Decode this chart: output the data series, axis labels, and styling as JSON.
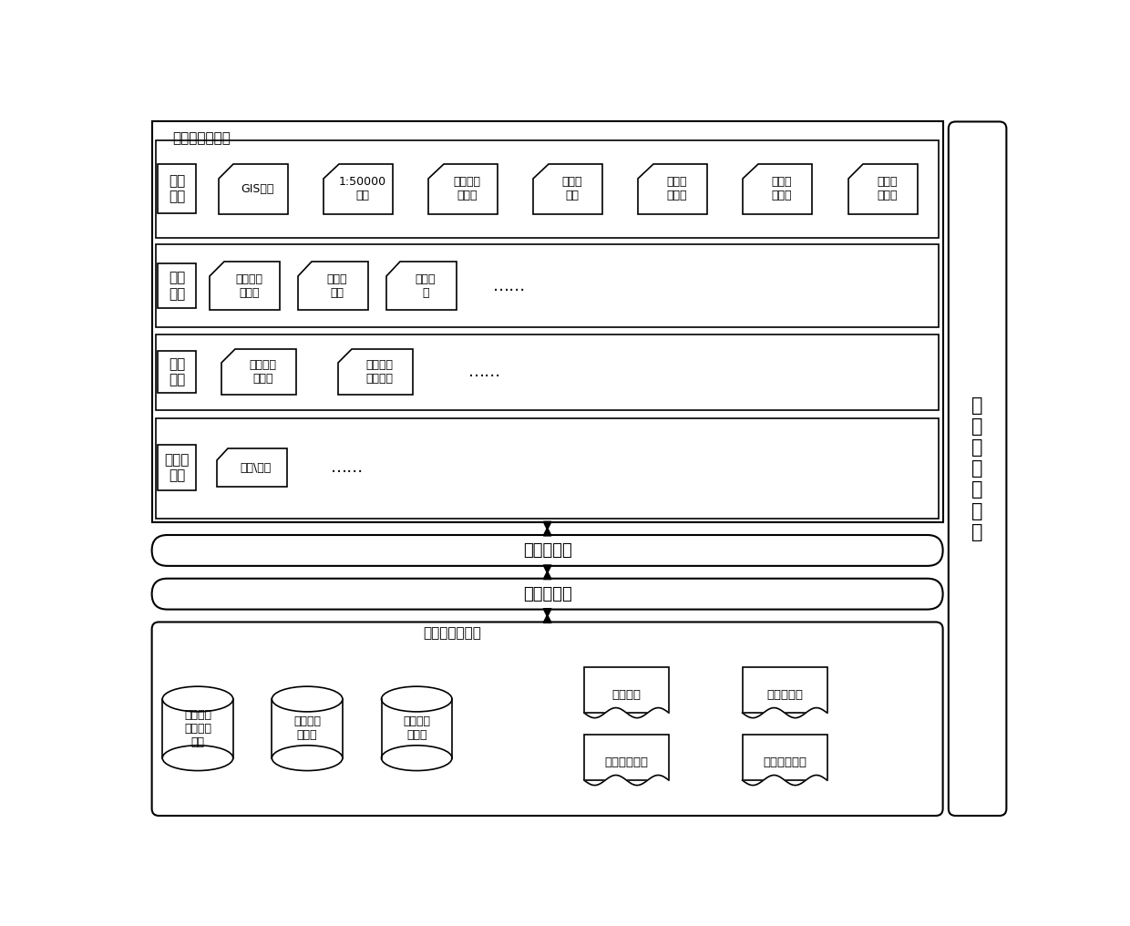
{
  "title": "业务应用数据区",
  "right_label": "系\n统\n内\n外\n部\n接\n口",
  "bg_color": "#ffffff",
  "section1_label": "基础\n数据",
  "section1_items": [
    "GIS底图",
    "1:50000\n图层",
    "输变电工\n程图层",
    "敏感区\n图层",
    "监测数\n据图层",
    "纠纷数\n据图层",
    "反馈意\n见数据"
  ],
  "section2_label": "统计\n数据",
  "section2_items": [
    "输变电工\n程统计",
    "敏感区\n统计",
    "综合统\n计",
    "……"
  ],
  "section3_label": "计算\n数据",
  "section3_items": [
    "敏感区识\n别数据",
    "环境因子\n预测数据",
    "……"
  ],
  "section4_label": "非结构\n数据",
  "section4_items": [
    "批文\\文档",
    "……"
  ],
  "layer1_label": "应用服务层",
  "layer2_label": "数据访问层",
  "storage_label": "数据资源存储区",
  "storage_db_items": [
    "对象关系\n型空间数\n据库",
    "敏感区属\n性数据",
    "设备信息\n数据库"
  ],
  "storage_file_items": [
    "在线文件",
    "多格式文件",
    "纸质扫描文件",
    "网络业务数据"
  ]
}
